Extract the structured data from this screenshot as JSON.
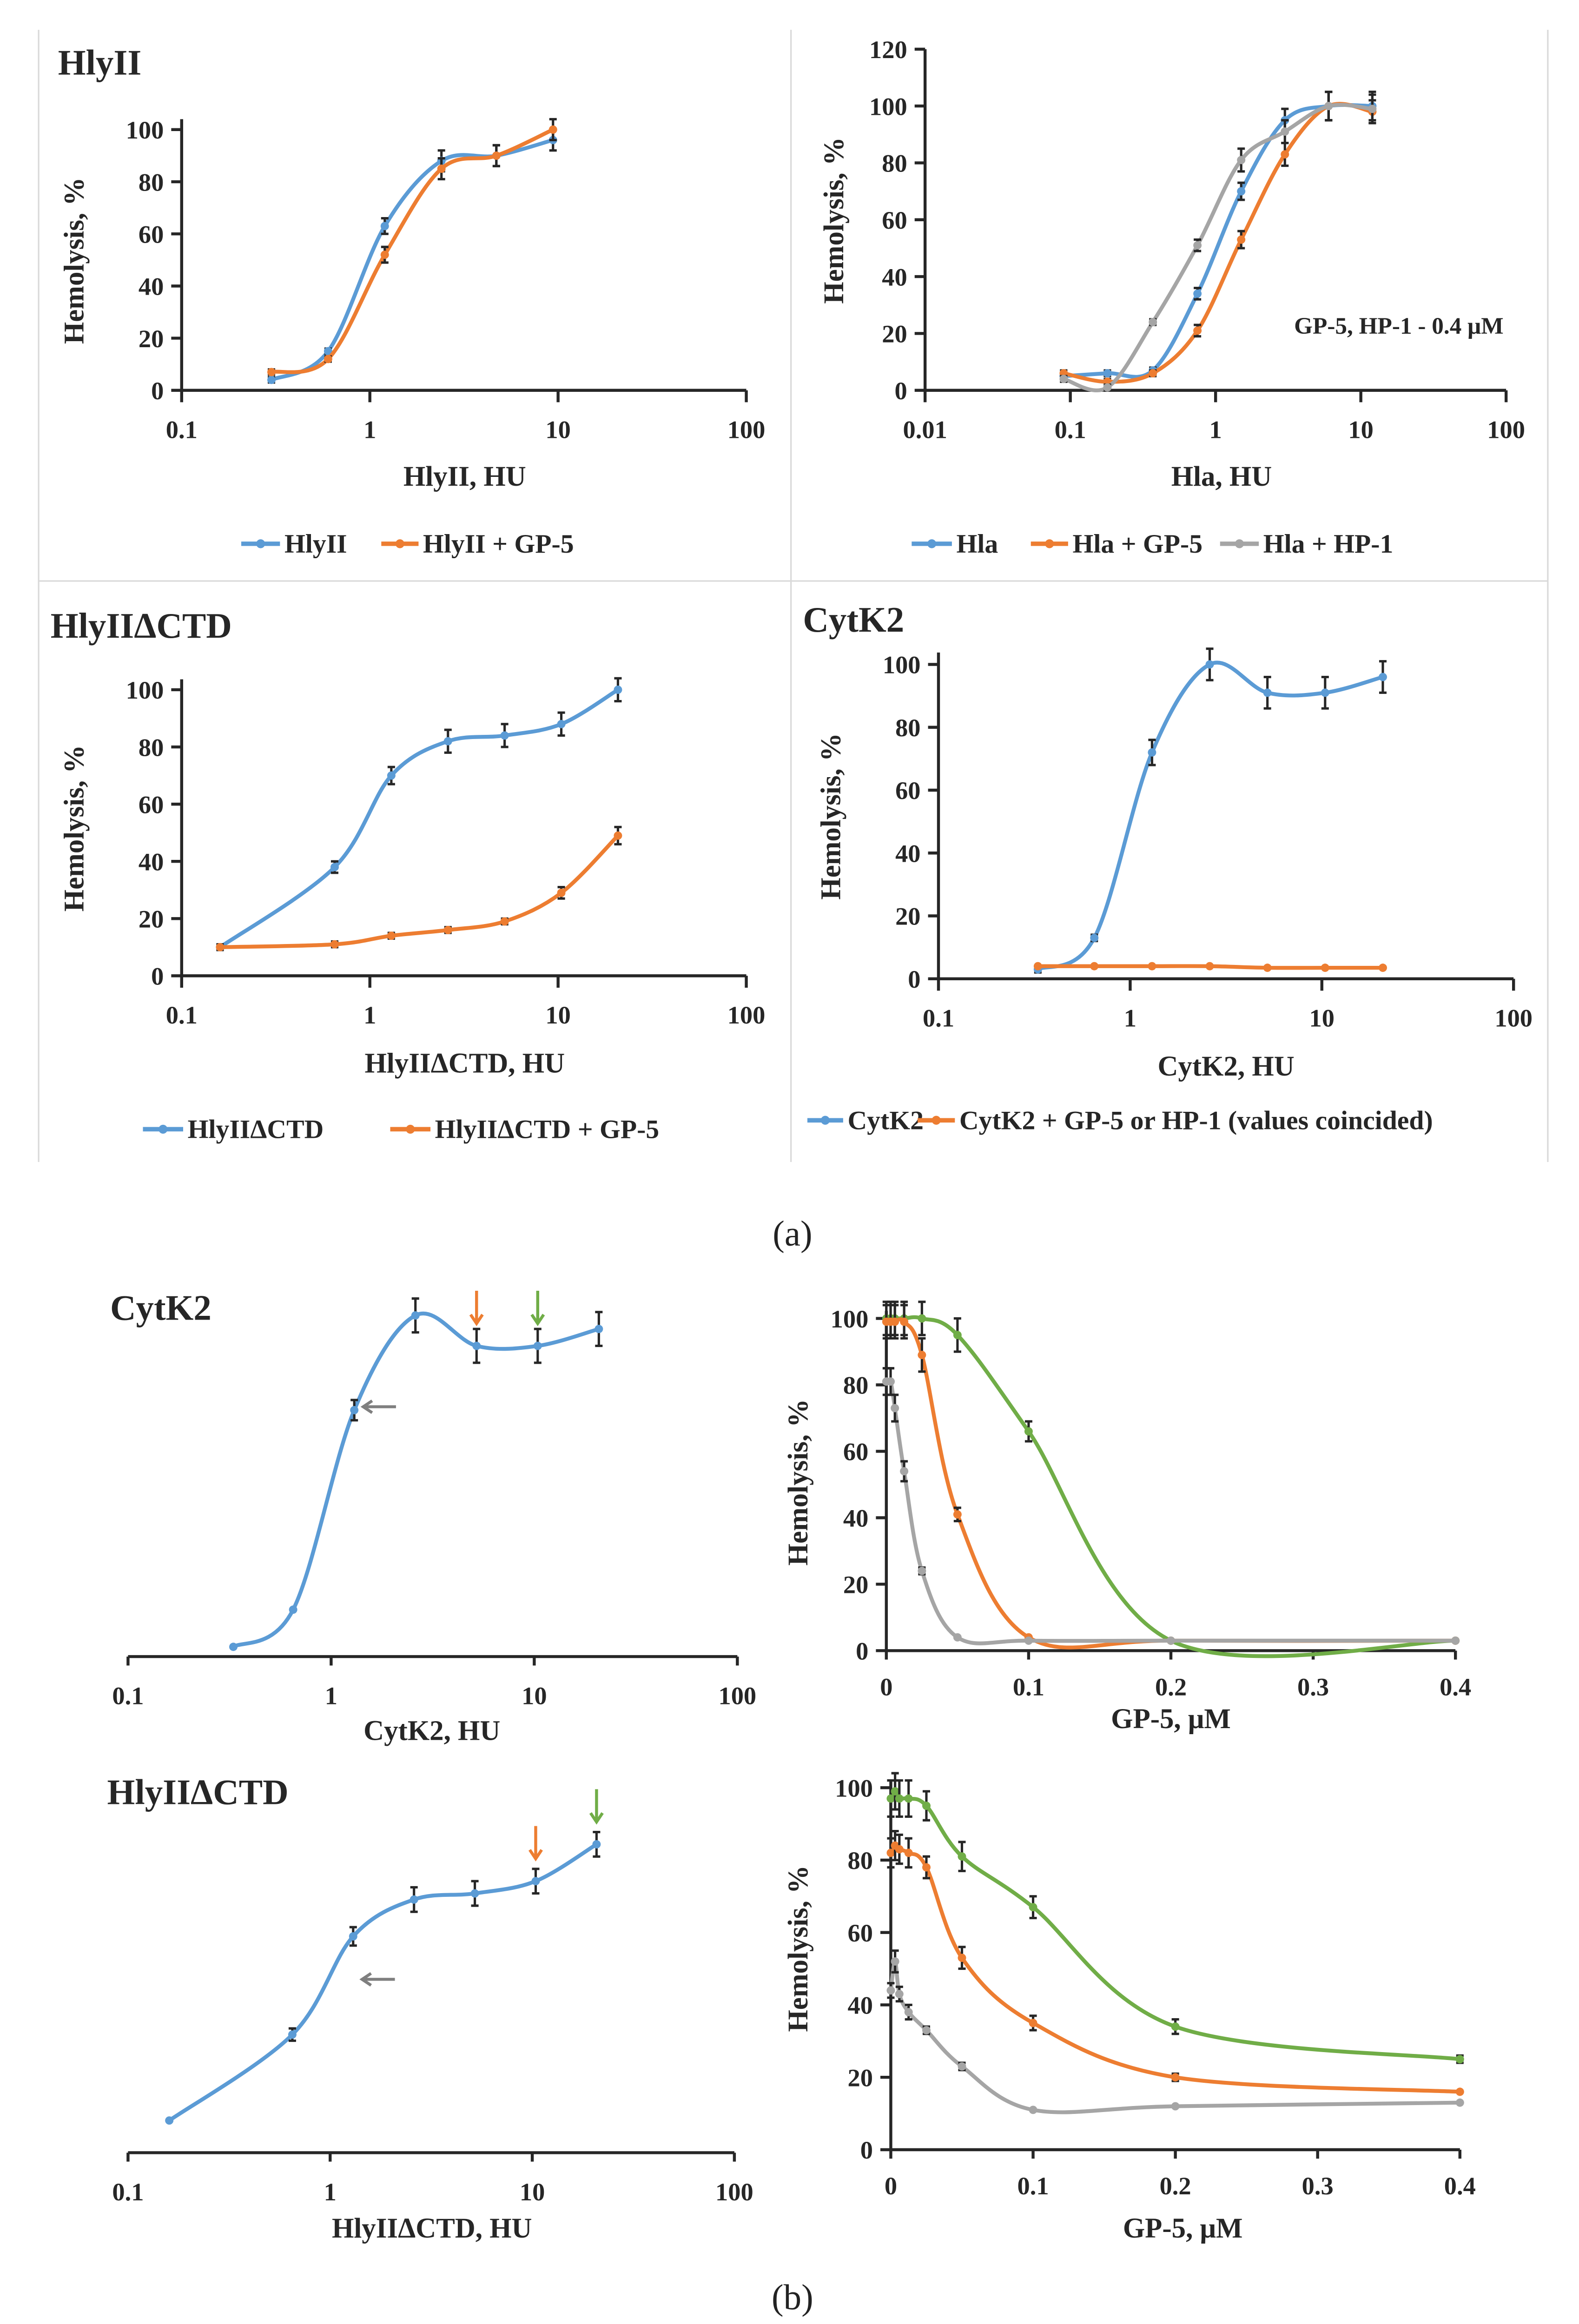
{
  "captions": {
    "a": "(a)",
    "b": "(b)"
  },
  "colors": {
    "blue": "#5b9bd5",
    "orange": "#ed7d31",
    "gray": "#a5a5a5",
    "green": "#70ad47"
  },
  "chart_data": [
    {
      "type": "line",
      "title": "HlyII",
      "xlabel": "HlyII, HU",
      "ylabel": "Hemolysis, %",
      "xscale": "log",
      "xlim": [
        0.1,
        100
      ],
      "ylim": [
        0,
        100
      ],
      "xticks": [
        "0.1",
        "1",
        "10",
        "100"
      ],
      "yticks": [
        "0",
        "20",
        "40",
        "60",
        "80",
        "100"
      ],
      "grid": false,
      "legend_position": "bottom",
      "x": [
        0.3,
        0.6,
        1.2,
        2.4,
        4.7,
        9.4
      ],
      "series": [
        {
          "name": "HlyII",
          "color": "#5b9bd5",
          "values": [
            4,
            15,
            63,
            88,
            90,
            96
          ],
          "error": [
            1,
            1,
            3,
            4,
            4,
            4
          ]
        },
        {
          "name": "HlyII + GP-5",
          "color": "#ed7d31",
          "values": [
            7,
            12,
            52,
            85,
            90,
            100
          ],
          "error": [
            1,
            1,
            3,
            4,
            4,
            4
          ]
        }
      ]
    },
    {
      "type": "line",
      "title": "",
      "xlabel": "Hla, HU",
      "ylabel": "Hemolysis, %",
      "xscale": "log",
      "xlim": [
        0.01,
        100
      ],
      "ylim": [
        0,
        120
      ],
      "xticks": [
        "0.01",
        "0.1",
        "1",
        "10",
        "100"
      ],
      "yticks": [
        "0",
        "20",
        "40",
        "60",
        "80",
        "100",
        "120"
      ],
      "grid": false,
      "legend_position": "bottom",
      "annotation": "GP-5, HP-1 - 0.4 μM",
      "x": [
        0.09,
        0.18,
        0.37,
        0.75,
        1.5,
        3,
        6,
        12
      ],
      "series": [
        {
          "name": "Hla",
          "color": "#5b9bd5",
          "values": [
            5,
            6,
            7,
            34,
            70,
            95,
            100,
            100
          ],
          "error": [
            1,
            1,
            1,
            2,
            3,
            4,
            5,
            5
          ]
        },
        {
          "name": "Hla + GP-5",
          "color": "#ed7d31",
          "values": [
            6,
            3,
            6,
            21,
            53,
            83,
            100,
            98
          ],
          "error": [
            1,
            1,
            1,
            2,
            3,
            4,
            5,
            4
          ]
        },
        {
          "name": "Hla + HP-1",
          "color": "#a5a5a5",
          "values": [
            4,
            1,
            24,
            51,
            81,
            91,
            100,
            99
          ],
          "error": [
            1,
            1,
            1,
            2,
            4,
            4,
            5,
            5
          ]
        }
      ]
    },
    {
      "type": "line",
      "title": "HlyIIΔCTD",
      "xlabel": "HlyIIΔCTD, HU",
      "ylabel": "Hemolysis, %",
      "xscale": "log",
      "xlim": [
        0.1,
        100
      ],
      "ylim": [
        0,
        100
      ],
      "xticks": [
        "0.1",
        "1",
        "10",
        "100"
      ],
      "yticks": [
        "0",
        "20",
        "40",
        "60",
        "80",
        "100"
      ],
      "grid": false,
      "legend_position": "bottom",
      "x": [
        0.16,
        0.65,
        1.3,
        2.6,
        5.2,
        10.4,
        20.8
      ],
      "series": [
        {
          "name": "HlyIIΔCTD",
          "color": "#5b9bd5",
          "values": [
            10,
            38,
            70,
            82,
            84,
            88,
            100
          ],
          "error": [
            1,
            2,
            3,
            4,
            4,
            4,
            4
          ]
        },
        {
          "name": "HlyIIΔCTD + GP-5",
          "color": "#ed7d31",
          "values": [
            10,
            11,
            14,
            16,
            19,
            29,
            49
          ],
          "error": [
            1,
            1,
            1,
            1,
            1,
            2,
            3
          ]
        }
      ]
    },
    {
      "type": "line",
      "title": "CytK2",
      "xlabel": "CytK2, HU",
      "ylabel": "Hemolysis, %",
      "xscale": "log",
      "xlim": [
        0.1,
        100
      ],
      "ylim": [
        0,
        100
      ],
      "xticks": [
        "0.1",
        "1",
        "10",
        "100"
      ],
      "yticks": [
        "0",
        "20",
        "40",
        "60",
        "80",
        "100"
      ],
      "grid": false,
      "legend_position": "bottom",
      "x": [
        0.33,
        0.65,
        1.3,
        2.6,
        5.2,
        10.4,
        20.8
      ],
      "series": [
        {
          "name": "CytK2",
          "color": "#5b9bd5",
          "values": [
            3,
            13,
            72,
            100,
            91,
            91,
            96
          ],
          "error": [
            1,
            1,
            4,
            5,
            5,
            5,
            5
          ]
        },
        {
          "name": "CytK2 + GP-5 or HP-1 (values coincided)",
          "color": "#ed7d31",
          "values": [
            4,
            4,
            4,
            4,
            3.5,
            3.5,
            3.5
          ],
          "error": [
            0,
            0,
            0,
            0,
            0,
            0,
            0
          ]
        }
      ]
    },
    {
      "type": "line",
      "title": "CytK2",
      "xlabel": "CytK2, HU",
      "ylabel": "",
      "xscale": "log",
      "xlim": [
        0.1,
        100
      ],
      "ylim": [
        0,
        100
      ],
      "xticks": [
        "0.1",
        "1",
        "10",
        "100"
      ],
      "yticks": [],
      "grid": false,
      "x": [
        0.33,
        0.65,
        1.3,
        2.6,
        5.2,
        10.4,
        20.8
      ],
      "series": [
        {
          "color": "#5b9bd5",
          "values": [
            2,
            13,
            72,
            100,
            91,
            91,
            96
          ],
          "error": [
            0,
            0,
            3,
            5,
            5,
            5,
            5
          ]
        }
      ],
      "arrows": [
        {
          "color": "#ed7d31",
          "x": 5.2,
          "y": 91,
          "direction": "down"
        },
        {
          "color": "#70ad47",
          "x": 10.4,
          "y": 91,
          "direction": "down"
        },
        {
          "color": "#7f7f7f",
          "x": 1.3,
          "y": 73,
          "direction": "left"
        }
      ]
    },
    {
      "type": "line",
      "title": "",
      "xlabel": "GP-5, μM",
      "ylabel": "Hemolysis, %",
      "xscale": "linear",
      "xlim": [
        0,
        0.4
      ],
      "ylim": [
        0,
        100
      ],
      "xticks": [
        "0",
        "0.1",
        "0.2",
        "0.3",
        "0.4"
      ],
      "yticks": [
        "0",
        "20",
        "40",
        "60",
        "80",
        "100"
      ],
      "grid": false,
      "x": [
        0,
        0.003,
        0.006,
        0.0125,
        0.025,
        0.05,
        0.1,
        0.2,
        0.4
      ],
      "series": [
        {
          "color": "#70ad47",
          "values": [
            100,
            100,
            100,
            100,
            100,
            95,
            66,
            3,
            3
          ],
          "error": [
            5,
            5,
            5,
            5,
            5,
            5,
            3,
            0,
            0
          ]
        },
        {
          "color": "#ed7d31",
          "values": [
            99,
            99,
            99,
            99,
            89,
            41,
            4,
            3,
            3
          ],
          "error": [
            5,
            5,
            5,
            5,
            5,
            2,
            0,
            0,
            0
          ]
        },
        {
          "color": "#a5a5a5",
          "values": [
            81,
            81,
            73,
            54,
            24,
            4,
            3,
            3,
            3
          ],
          "error": [
            4,
            4,
            4,
            3,
            1,
            0,
            0,
            0,
            0
          ]
        }
      ]
    },
    {
      "type": "line",
      "title": "HlyIIΔCTD",
      "xlabel": "HlyIIΔCTD, HU",
      "ylabel": "",
      "xscale": "log",
      "xlim": [
        0.1,
        100
      ],
      "ylim": [
        0,
        100
      ],
      "xticks": [
        "0.1",
        "1",
        "10",
        "100"
      ],
      "yticks": [],
      "grid": false,
      "x": [
        0.16,
        0.65,
        1.3,
        2.6,
        5.2,
        10.4,
        20.8
      ],
      "series": [
        {
          "color": "#5b9bd5",
          "values": [
            10,
            38,
            70,
            82,
            84,
            88,
            100
          ],
          "error": [
            0,
            2,
            3,
            4,
            4,
            4,
            4
          ]
        }
      ],
      "arrows": [
        {
          "color": "#ed7d31",
          "x": 10.4,
          "y": 88,
          "direction": "down"
        },
        {
          "color": "#70ad47",
          "x": 20.8,
          "y": 100,
          "direction": "down"
        },
        {
          "color": "#7f7f7f",
          "x": 1.3,
          "y": 56,
          "direction": "left"
        }
      ]
    },
    {
      "type": "line",
      "title": "",
      "xlabel": "GP-5, μM",
      "ylabel": "Hemolysis, %",
      "xscale": "linear",
      "xlim": [
        0,
        0.4
      ],
      "ylim": [
        0,
        100
      ],
      "xticks": [
        "0",
        "0.1",
        "0.2",
        "0.3",
        "0.4"
      ],
      "yticks": [
        "0",
        "20",
        "40",
        "60",
        "80",
        "100"
      ],
      "grid": false,
      "x": [
        0,
        0.003,
        0.006,
        0.0125,
        0.025,
        0.05,
        0.1,
        0.2,
        0.4
      ],
      "series": [
        {
          "color": "#70ad47",
          "values": [
            97,
            99,
            97,
            97,
            95,
            81,
            67,
            34,
            25
          ],
          "error": [
            5,
            5,
            5,
            5,
            4,
            4,
            3,
            2,
            1
          ]
        },
        {
          "color": "#ed7d31",
          "values": [
            82,
            84,
            83,
            82,
            78,
            53,
            35,
            20,
            16
          ],
          "error": [
            4,
            4,
            4,
            4,
            3,
            3,
            2,
            1,
            0
          ]
        },
        {
          "color": "#a5a5a5",
          "values": [
            44,
            52,
            43,
            38,
            33,
            23,
            11,
            12,
            13
          ],
          "error": [
            2,
            3,
            2,
            2,
            1,
            1,
            0,
            0,
            0
          ]
        }
      ]
    }
  ]
}
